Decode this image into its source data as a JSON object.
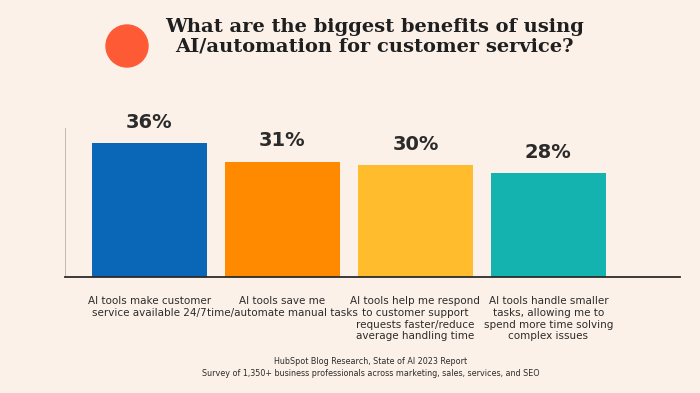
{
  "chart_data": {
    "type": "bar",
    "title": "What are the biggest benefits of using\nAI/automation for customer service?",
    "categories": [
      "AI tools make customer service available 24/7",
      "AI tools save me time/automate manual tasks",
      "AI tools help me respond to customer support requests faster/reduce average handling time",
      "AI tools handle smaller tasks, allowing me to spend more time solving complex issues"
    ],
    "values": [
      36,
      31,
      30,
      28
    ],
    "value_labels": [
      "36%",
      "31%",
      "30%",
      "28%"
    ],
    "colors": [
      "#0a66b7",
      "#ff8a00",
      "#ffbd2e",
      "#14b3b0"
    ],
    "ylim": [
      0,
      40
    ],
    "grid": false,
    "data_labels": true,
    "tick_labels": "x",
    "annotations": [
      "HubSpot Blog Research, State of AI 2023 Report",
      "Survey of 1,350+ business professionals across marketing, sales, services, and SEO"
    ]
  }
}
